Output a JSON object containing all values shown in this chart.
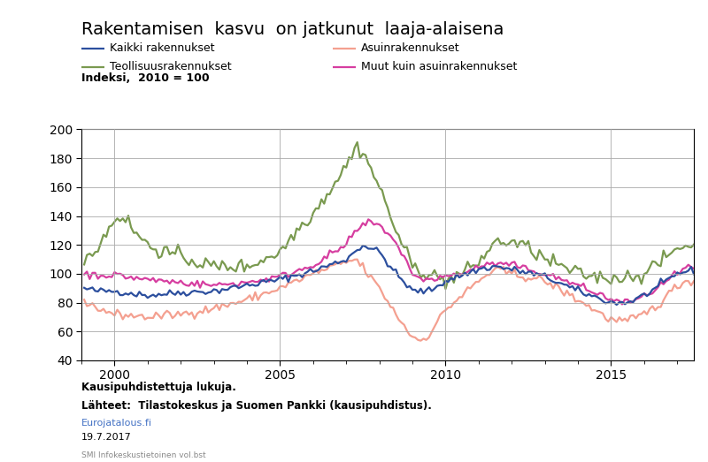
{
  "title": "Rakentamisen  kasvu  on jatkunut  laaja-alaisena",
  "ylabel": "Indeksi,  2010 = 100",
  "xlabel_note1": "Kausipuhdistettuja lukuja.",
  "xlabel_note2": "Lähteet:  Tilastokeskus ja Suomen Pankki (kausipuhdistus).",
  "xlabel_note3": "Eurojatalous.fi",
  "xlabel_note4": "19.7.2017",
  "xlabel_note5": "SMI Infokeskustietoinen vol.bst",
  "legend": [
    {
      "label": "Kaikki rakennukset",
      "color": "#2c4f9e",
      "lw": 1.6
    },
    {
      "label": "Asuinrakennukset",
      "color": "#f4a090",
      "lw": 1.6
    },
    {
      "label": "Teollisuusrakennukset",
      "color": "#7a9a50",
      "lw": 1.6
    },
    {
      "label": "Muut kuin asuinrakennukset",
      "color": "#d63ea0",
      "lw": 1.6
    }
  ],
  "xlim": [
    1999.0,
    2017.5
  ],
  "ylim": [
    40,
    200
  ],
  "yticks": [
    40,
    60,
    80,
    100,
    120,
    140,
    160,
    180,
    200
  ],
  "xticks": [
    2000,
    2005,
    2010,
    2015
  ],
  "background_color": "#ffffff",
  "grid_color": "#aaaaaa"
}
